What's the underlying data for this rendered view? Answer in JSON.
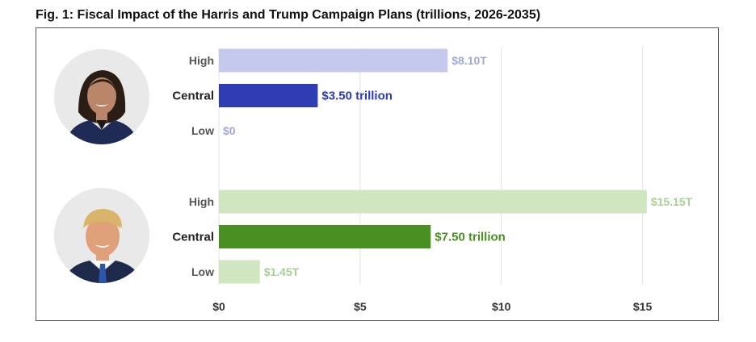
{
  "figure": {
    "title": "Fig. 1: Fiscal Impact of the Harris and Trump Campaign Plans (trillions, 2026-2035)"
  },
  "chart_data": {
    "type": "bar",
    "orientation": "horizontal",
    "title": "Fig. 1: Fiscal Impact of the Harris and Trump Campaign Plans (trillions, 2026-2035)",
    "xlim": [
      0,
      17.5
    ],
    "xticks": [
      0,
      5,
      10,
      15
    ],
    "xtick_labels": [
      "$0",
      "$5",
      "$10",
      "$15"
    ],
    "grid": "vertical",
    "groups": [
      {
        "avatar": "harris-portrait",
        "bars": [
          {
            "category": "High",
            "value": 8.1,
            "label": "$8.10T",
            "color": "#c5c9ee",
            "label_color": "#a2a8dc",
            "emphasis": false
          },
          {
            "category": "Central",
            "value": 3.5,
            "label": "$3.50 trillion",
            "color": "#2e3db3",
            "label_color": "#2e3db3",
            "emphasis": true
          },
          {
            "category": "Low",
            "value": 0,
            "label": "$0",
            "color": "#c5c9ee",
            "label_color": "#a2a8dc",
            "emphasis": false
          }
        ]
      },
      {
        "avatar": "trump-portrait",
        "bars": [
          {
            "category": "High",
            "value": 15.15,
            "label": "$15.15T",
            "color": "#cfe6c0",
            "label_color": "#a9cf95",
            "emphasis": false
          },
          {
            "category": "Central",
            "value": 7.5,
            "label": "$7.50 trillion",
            "color": "#4a8f22",
            "label_color": "#4a8f22",
            "emphasis": true
          },
          {
            "category": "Low",
            "value": 1.45,
            "label": "$1.45T",
            "color": "#cfe6c0",
            "label_color": "#a9cf95",
            "emphasis": false
          }
        ]
      }
    ]
  }
}
